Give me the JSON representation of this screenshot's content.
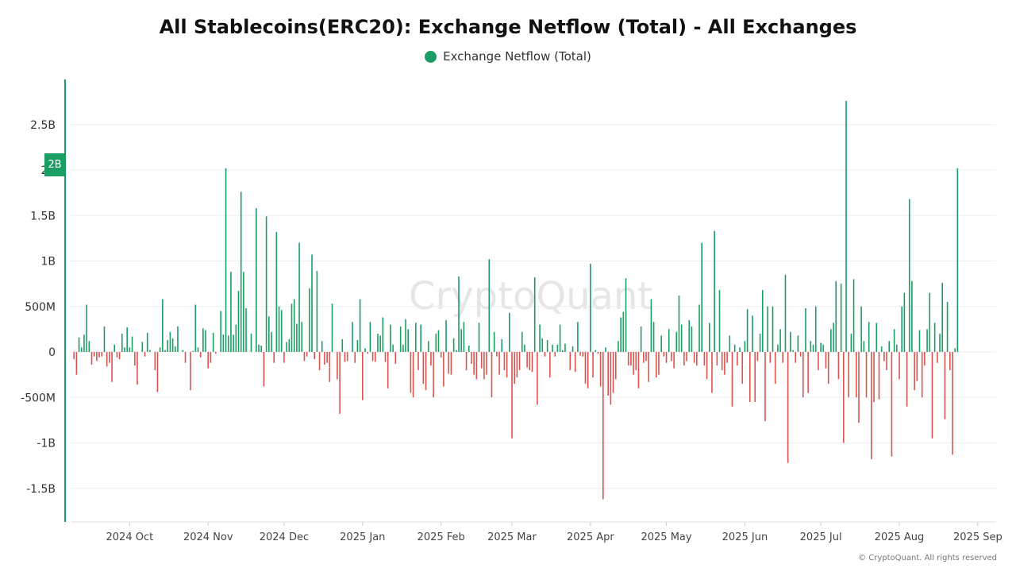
{
  "title": "All Stablecoins(ERC20): Exchange Netflow (Total) - All Exchanges",
  "watermark": "CryptoQuant",
  "copyright": "© CryptoQuant. All rights reserved",
  "y_marker": "2B",
  "colors": {
    "positive": "#1a9e63",
    "negative": "#d9534f",
    "axis": "#1a9e63",
    "grid": "#eeeeee"
  },
  "chart_data": {
    "type": "bar",
    "title": "All Stablecoins(ERC20): Exchange Netflow (Total) - All Exchanges",
    "series": [
      {
        "name": "Exchange Netflow (Total)"
      }
    ],
    "x_range": [
      "2024-09-08",
      "2025-09-07"
    ],
    "x_ticks": [
      "2024 Oct",
      "2024 Nov",
      "2024 Dec",
      "2025 Jan",
      "2025 Feb",
      "2025 Mar",
      "2025 Apr",
      "2025 May",
      "2025 Jun",
      "2025 Jul",
      "2025 Aug",
      "2025 Sep"
    ],
    "y_ticks": [
      "2.5B",
      "2B",
      "1.5B",
      "1B",
      "500M",
      "0",
      "-500M",
      "-1B",
      "-1.5B"
    ],
    "ylim": [
      -1800000000,
      2900000000
    ],
    "grid": true,
    "legend_position": "top-center",
    "points": [
      [
        "2024-09-09",
        -0.08
      ],
      [
        "2024-09-10",
        -0.25
      ],
      [
        "2024-09-11",
        0.16
      ],
      [
        "2024-09-12",
        0.05
      ],
      [
        "2024-09-13",
        0.19
      ],
      [
        "2024-09-14",
        0.52
      ],
      [
        "2024-09-15",
        0.12
      ],
      [
        "2024-09-16",
        -0.14
      ],
      [
        "2024-09-17",
        -0.05
      ],
      [
        "2024-09-18",
        -0.1
      ],
      [
        "2024-09-19",
        -0.06
      ],
      [
        "2024-09-20",
        -0.05
      ],
      [
        "2024-09-21",
        0.28
      ],
      [
        "2024-09-22",
        -0.16
      ],
      [
        "2024-09-23",
        -0.12
      ],
      [
        "2024-09-24",
        -0.33
      ],
      [
        "2024-09-25",
        0.08
      ],
      [
        "2024-09-26",
        -0.06
      ],
      [
        "2024-09-27",
        -0.08
      ],
      [
        "2024-09-28",
        0.2
      ],
      [
        "2024-09-29",
        0.05
      ],
      [
        "2024-09-30",
        0.27
      ],
      [
        "2024-10-01",
        0.05
      ],
      [
        "2024-10-02",
        0.17
      ],
      [
        "2024-10-03",
        -0.15
      ],
      [
        "2024-10-04",
        -0.36
      ],
      [
        "2024-10-06",
        0.11
      ],
      [
        "2024-10-07",
        -0.05
      ],
      [
        "2024-10-08",
        0.21
      ],
      [
        "2024-10-09",
        0.02
      ],
      [
        "2024-10-11",
        -0.2
      ],
      [
        "2024-10-12",
        -0.44
      ],
      [
        "2024-10-13",
        0.05
      ],
      [
        "2024-10-14",
        0.58
      ],
      [
        "2024-10-15",
        0.02
      ],
      [
        "2024-10-16",
        0.13
      ],
      [
        "2024-10-17",
        0.22
      ],
      [
        "2024-10-18",
        0.15
      ],
      [
        "2024-10-19",
        0.06
      ],
      [
        "2024-10-20",
        0.28
      ],
      [
        "2024-10-22",
        0.02
      ],
      [
        "2024-10-23",
        -0.12
      ],
      [
        "2024-10-25",
        -0.42
      ],
      [
        "2024-10-26",
        0.01
      ],
      [
        "2024-10-27",
        0.52
      ],
      [
        "2024-10-28",
        0.05
      ],
      [
        "2024-10-29",
        -0.06
      ],
      [
        "2024-10-30",
        0.26
      ],
      [
        "2024-10-31",
        0.24
      ],
      [
        "2024-11-01",
        -0.18
      ],
      [
        "2024-11-02",
        -0.12
      ],
      [
        "2024-11-03",
        0.21
      ],
      [
        "2024-11-04",
        -0.02
      ],
      [
        "2024-11-06",
        0.45
      ],
      [
        "2024-11-07",
        0.19
      ],
      [
        "2024-11-08",
        2.02
      ],
      [
        "2024-11-09",
        0.18
      ],
      [
        "2024-11-10",
        0.88
      ],
      [
        "2024-11-11",
        0.19
      ],
      [
        "2024-11-12",
        0.3
      ],
      [
        "2024-11-13",
        0.67
      ],
      [
        "2024-11-14",
        1.76
      ],
      [
        "2024-11-15",
        0.88
      ],
      [
        "2024-11-16",
        0.48
      ],
      [
        "2024-11-18",
        0.2
      ],
      [
        "2024-11-20",
        1.58
      ],
      [
        "2024-11-21",
        0.08
      ],
      [
        "2024-11-22",
        0.07
      ],
      [
        "2024-11-23",
        -0.38
      ],
      [
        "2024-11-24",
        1.49
      ],
      [
        "2024-11-25",
        0.39
      ],
      [
        "2024-11-26",
        0.22
      ],
      [
        "2024-11-27",
        -0.12
      ],
      [
        "2024-11-28",
        1.32
      ],
      [
        "2024-11-29",
        0.5
      ],
      [
        "2024-11-30",
        0.46
      ],
      [
        "2024-12-01",
        -0.12
      ],
      [
        "2024-12-02",
        0.11
      ],
      [
        "2024-12-03",
        0.14
      ],
      [
        "2024-12-04",
        0.53
      ],
      [
        "2024-12-05",
        0.58
      ],
      [
        "2024-12-06",
        0.31
      ],
      [
        "2024-12-07",
        1.2
      ],
      [
        "2024-12-08",
        0.33
      ],
      [
        "2024-12-09",
        -0.1
      ],
      [
        "2024-12-10",
        -0.05
      ],
      [
        "2024-12-11",
        0.7
      ],
      [
        "2024-12-12",
        1.07
      ],
      [
        "2024-12-13",
        -0.08
      ],
      [
        "2024-12-14",
        0.89
      ],
      [
        "2024-12-15",
        -0.2
      ],
      [
        "2024-12-16",
        0.12
      ],
      [
        "2024-12-17",
        -0.14
      ],
      [
        "2024-12-18",
        -0.12
      ],
      [
        "2024-12-19",
        -0.33
      ],
      [
        "2024-12-20",
        0.53
      ],
      [
        "2024-12-22",
        -0.3
      ],
      [
        "2024-12-23",
        -0.68
      ],
      [
        "2024-12-24",
        0.14
      ],
      [
        "2024-12-25",
        -0.11
      ],
      [
        "2024-12-26",
        -0.1
      ],
      [
        "2024-12-28",
        0.33
      ],
      [
        "2024-12-29",
        -0.12
      ],
      [
        "2024-12-30",
        0.13
      ],
      [
        "2024-12-31",
        0.58
      ],
      [
        "2025-01-01",
        -0.53
      ],
      [
        "2025-01-02",
        0.04
      ],
      [
        "2025-01-03",
        -0.02
      ],
      [
        "2025-01-04",
        0.33
      ],
      [
        "2025-01-05",
        -0.1
      ],
      [
        "2025-01-06",
        -0.11
      ],
      [
        "2025-01-07",
        0.2
      ],
      [
        "2025-01-08",
        0.18
      ],
      [
        "2025-01-09",
        0.38
      ],
      [
        "2025-01-10",
        -0.11
      ],
      [
        "2025-01-11",
        -0.4
      ],
      [
        "2025-01-12",
        0.3
      ],
      [
        "2025-01-13",
        0.08
      ],
      [
        "2025-01-14",
        -0.13
      ],
      [
        "2025-01-16",
        0.28
      ],
      [
        "2025-01-17",
        0.08
      ],
      [
        "2025-01-18",
        0.36
      ],
      [
        "2025-01-19",
        0.25
      ],
      [
        "2025-01-20",
        -0.45
      ],
      [
        "2025-01-21",
        -0.5
      ],
      [
        "2025-01-22",
        0.32
      ],
      [
        "2025-01-23",
        -0.2
      ],
      [
        "2025-01-24",
        0.3
      ],
      [
        "2025-01-25",
        -0.35
      ],
      [
        "2025-01-26",
        -0.42
      ],
      [
        "2025-01-27",
        0.12
      ],
      [
        "2025-01-28",
        -0.15
      ],
      [
        "2025-01-29",
        -0.5
      ],
      [
        "2025-01-30",
        0.2
      ],
      [
        "2025-01-31",
        0.24
      ],
      [
        "2025-02-01",
        -0.06
      ],
      [
        "2025-02-02",
        -0.38
      ],
      [
        "2025-02-03",
        0.35
      ],
      [
        "2025-02-04",
        -0.24
      ],
      [
        "2025-02-05",
        -0.25
      ],
      [
        "2025-02-06",
        0.15
      ],
      [
        "2025-02-07",
        0.02
      ],
      [
        "2025-02-08",
        0.83
      ],
      [
        "2025-02-09",
        0.25
      ],
      [
        "2025-02-10",
        0.33
      ],
      [
        "2025-02-11",
        -0.2
      ],
      [
        "2025-02-12",
        0.07
      ],
      [
        "2025-02-13",
        -0.13
      ],
      [
        "2025-02-14",
        -0.25
      ],
      [
        "2025-02-15",
        -0.3
      ],
      [
        "2025-02-16",
        0.32
      ],
      [
        "2025-02-17",
        -0.18
      ],
      [
        "2025-02-18",
        -0.3
      ],
      [
        "2025-02-19",
        -0.25
      ],
      [
        "2025-02-20",
        1.02
      ],
      [
        "2025-02-21",
        -0.5
      ],
      [
        "2025-02-22",
        0.22
      ],
      [
        "2025-02-23",
        -0.05
      ],
      [
        "2025-02-24",
        -0.25
      ],
      [
        "2025-02-25",
        0.14
      ],
      [
        "2025-02-26",
        -0.2
      ],
      [
        "2025-02-27",
        -0.28
      ],
      [
        "2025-02-28",
        0.43
      ],
      [
        "2025-03-01",
        -0.95
      ],
      [
        "2025-03-02",
        -0.35
      ],
      [
        "2025-03-03",
        -0.28
      ],
      [
        "2025-03-04",
        -0.2
      ],
      [
        "2025-03-05",
        0.22
      ],
      [
        "2025-03-06",
        0.08
      ],
      [
        "2025-03-07",
        -0.17
      ],
      [
        "2025-03-08",
        -0.2
      ],
      [
        "2025-03-09",
        -0.22
      ],
      [
        "2025-03-10",
        0.82
      ],
      [
        "2025-03-11",
        -0.58
      ],
      [
        "2025-03-12",
        0.3
      ],
      [
        "2025-03-13",
        0.15
      ],
      [
        "2025-03-14",
        -0.05
      ],
      [
        "2025-03-15",
        0.13
      ],
      [
        "2025-03-16",
        -0.28
      ],
      [
        "2025-03-17",
        0.08
      ],
      [
        "2025-03-18",
        -0.05
      ],
      [
        "2025-03-19",
        0.08
      ],
      [
        "2025-03-20",
        0.3
      ],
      [
        "2025-03-21",
        0.02
      ],
      [
        "2025-03-22",
        0.09
      ],
      [
        "2025-03-24",
        -0.2
      ],
      [
        "2025-03-25",
        0.06
      ],
      [
        "2025-03-26",
        -0.22
      ],
      [
        "2025-03-27",
        0.33
      ],
      [
        "2025-03-28",
        -0.04
      ],
      [
        "2025-03-29",
        -0.05
      ],
      [
        "2025-03-30",
        -0.35
      ],
      [
        "2025-03-31",
        -0.4
      ],
      [
        "2025-04-01",
        0.97
      ],
      [
        "2025-04-02",
        -0.28
      ],
      [
        "2025-04-03",
        0.02
      ],
      [
        "2025-04-04",
        -0.02
      ],
      [
        "2025-04-05",
        -0.38
      ],
      [
        "2025-04-06",
        -1.62
      ],
      [
        "2025-04-07",
        0.05
      ],
      [
        "2025-04-08",
        -0.48
      ],
      [
        "2025-04-09",
        -0.58
      ],
      [
        "2025-04-10",
        -0.45
      ],
      [
        "2025-04-11",
        -0.3
      ],
      [
        "2025-04-12",
        0.12
      ],
      [
        "2025-04-13",
        0.38
      ],
      [
        "2025-04-14",
        0.44
      ],
      [
        "2025-04-15",
        0.81
      ],
      [
        "2025-04-16",
        -0.15
      ],
      [
        "2025-04-17",
        -0.15
      ],
      [
        "2025-04-18",
        -0.25
      ],
      [
        "2025-04-19",
        -0.2
      ],
      [
        "2025-04-20",
        -0.4
      ],
      [
        "2025-04-21",
        0.28
      ],
      [
        "2025-04-22",
        -0.12
      ],
      [
        "2025-04-23",
        -0.1
      ],
      [
        "2025-04-24",
        -0.33
      ],
      [
        "2025-04-25",
        0.58
      ],
      [
        "2025-04-26",
        0.33
      ],
      [
        "2025-04-27",
        -0.28
      ],
      [
        "2025-04-28",
        -0.25
      ],
      [
        "2025-04-29",
        0.18
      ],
      [
        "2025-04-30",
        -0.05
      ],
      [
        "2025-05-01",
        -0.12
      ],
      [
        "2025-05-02",
        0.25
      ],
      [
        "2025-05-03",
        -0.1
      ],
      [
        "2025-05-04",
        -0.18
      ],
      [
        "2025-05-05",
        0.22
      ],
      [
        "2025-05-06",
        0.62
      ],
      [
        "2025-05-07",
        0.3
      ],
      [
        "2025-05-08",
        -0.15
      ],
      [
        "2025-05-09",
        -0.1
      ],
      [
        "2025-05-10",
        0.35
      ],
      [
        "2025-05-11",
        0.28
      ],
      [
        "2025-05-12",
        -0.12
      ],
      [
        "2025-05-13",
        -0.15
      ],
      [
        "2025-05-14",
        0.52
      ],
      [
        "2025-05-15",
        1.2
      ],
      [
        "2025-05-16",
        -0.15
      ],
      [
        "2025-05-17",
        -0.3
      ],
      [
        "2025-05-18",
        0.32
      ],
      [
        "2025-05-19",
        -0.45
      ],
      [
        "2025-05-20",
        1.33
      ],
      [
        "2025-05-21",
        -0.15
      ],
      [
        "2025-05-22",
        0.68
      ],
      [
        "2025-05-23",
        -0.2
      ],
      [
        "2025-05-24",
        -0.25
      ],
      [
        "2025-05-25",
        -0.12
      ],
      [
        "2025-05-26",
        0.18
      ],
      [
        "2025-05-27",
        -0.6
      ],
      [
        "2025-05-28",
        0.08
      ],
      [
        "2025-05-29",
        -0.15
      ],
      [
        "2025-05-30",
        0.05
      ],
      [
        "2025-05-31",
        -0.35
      ],
      [
        "2025-06-01",
        0.12
      ],
      [
        "2025-06-02",
        0.47
      ],
      [
        "2025-06-03",
        -0.55
      ],
      [
        "2025-06-04",
        0.4
      ],
      [
        "2025-06-05",
        -0.55
      ],
      [
        "2025-06-06",
        -0.1
      ],
      [
        "2025-06-07",
        0.2
      ],
      [
        "2025-06-08",
        0.68
      ],
      [
        "2025-06-09",
        -0.76
      ],
      [
        "2025-06-10",
        0.5
      ],
      [
        "2025-06-11",
        -0.12
      ],
      [
        "2025-06-12",
        0.5
      ],
      [
        "2025-06-13",
        -0.35
      ],
      [
        "2025-06-14",
        0.08
      ],
      [
        "2025-06-15",
        0.25
      ],
      [
        "2025-06-16",
        -0.12
      ],
      [
        "2025-06-17",
        0.85
      ],
      [
        "2025-06-18",
        -1.22
      ],
      [
        "2025-06-19",
        0.22
      ],
      [
        "2025-06-20",
        0.02
      ],
      [
        "2025-06-21",
        -0.12
      ],
      [
        "2025-06-22",
        0.18
      ],
      [
        "2025-06-23",
        -0.05
      ],
      [
        "2025-06-24",
        -0.5
      ],
      [
        "2025-06-25",
        0.48
      ],
      [
        "2025-06-26",
        -0.45
      ],
      [
        "2025-06-27",
        0.12
      ],
      [
        "2025-06-28",
        0.08
      ],
      [
        "2025-06-29",
        0.5
      ],
      [
        "2025-06-30",
        -0.2
      ],
      [
        "2025-07-01",
        0.1
      ],
      [
        "2025-07-02",
        0.08
      ],
      [
        "2025-07-03",
        -0.18
      ],
      [
        "2025-07-04",
        -0.35
      ],
      [
        "2025-07-05",
        0.25
      ],
      [
        "2025-07-06",
        0.32
      ],
      [
        "2025-07-07",
        0.78
      ],
      [
        "2025-07-08",
        -0.3
      ],
      [
        "2025-07-09",
        0.75
      ],
      [
        "2025-07-10",
        -1.0
      ],
      [
        "2025-07-11",
        2.76
      ],
      [
        "2025-07-12",
        -0.5
      ],
      [
        "2025-07-13",
        0.2
      ],
      [
        "2025-07-14",
        0.8
      ],
      [
        "2025-07-15",
        -0.5
      ],
      [
        "2025-07-16",
        -0.78
      ],
      [
        "2025-07-17",
        0.5
      ],
      [
        "2025-07-18",
        0.12
      ],
      [
        "2025-07-19",
        -0.5
      ],
      [
        "2025-07-20",
        0.33
      ],
      [
        "2025-07-21",
        -1.18
      ],
      [
        "2025-07-22",
        -0.55
      ],
      [
        "2025-07-23",
        0.32
      ],
      [
        "2025-07-24",
        -0.52
      ],
      [
        "2025-07-25",
        0.06
      ],
      [
        "2025-07-26",
        -0.1
      ],
      [
        "2025-07-27",
        -0.2
      ],
      [
        "2025-07-28",
        0.12
      ],
      [
        "2025-07-29",
        -1.15
      ],
      [
        "2025-07-30",
        0.25
      ],
      [
        "2025-07-31",
        0.08
      ],
      [
        "2025-08-01",
        -0.3
      ],
      [
        "2025-08-02",
        0.5
      ],
      [
        "2025-08-03",
        0.65
      ],
      [
        "2025-08-04",
        -0.6
      ],
      [
        "2025-08-05",
        1.68
      ],
      [
        "2025-08-06",
        0.78
      ],
      [
        "2025-08-07",
        -0.42
      ],
      [
        "2025-08-08",
        -0.32
      ],
      [
        "2025-08-09",
        0.24
      ],
      [
        "2025-08-10",
        -0.5
      ],
      [
        "2025-08-11",
        -0.15
      ],
      [
        "2025-08-12",
        0.25
      ],
      [
        "2025-08-13",
        0.65
      ],
      [
        "2025-08-14",
        -0.95
      ],
      [
        "2025-08-15",
        0.32
      ],
      [
        "2025-08-16",
        -0.12
      ],
      [
        "2025-08-17",
        0.2
      ],
      [
        "2025-08-18",
        0.76
      ],
      [
        "2025-08-19",
        -0.74
      ],
      [
        "2025-08-20",
        0.55
      ],
      [
        "2025-08-21",
        -0.2
      ],
      [
        "2025-08-22",
        -1.13
      ],
      [
        "2025-08-23",
        0.04
      ],
      [
        "2025-08-24",
        2.02
      ]
    ]
  }
}
